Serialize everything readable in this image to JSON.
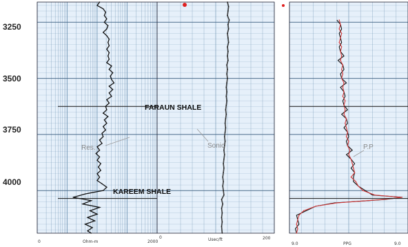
{
  "chart_data": {
    "type": "line",
    "depth_axis": {
      "tick_labels": [
        "3250",
        "3500",
        "3750",
        "4000"
      ],
      "ticks": [
        3250,
        3500,
        3750,
        4000
      ],
      "range": [
        3160,
        4190
      ]
    },
    "tracks": [
      {
        "id": "resistivity",
        "curve_label": "Res.",
        "scale_labels": [
          "0",
          "Ohm-m",
          "2000"
        ],
        "log_scale": true,
        "grid": true
      },
      {
        "id": "sonic",
        "curve_label": "Sonic",
        "scale_labels": [
          "0",
          "Usec/ft",
          "200"
        ],
        "grid": true
      },
      {
        "id": "pore_pressure",
        "curve_label": "P.P",
        "scale_labels": [
          "9.0",
          "PPG",
          "9.0"
        ],
        "grid": true
      }
    ],
    "annotations": [
      "FARAUN SHALE",
      "KAREEM SHALE"
    ],
    "formation_depths": [
      3625,
      4035
    ],
    "series": [
      {
        "track": "resistivity",
        "x_range": [
          0,
          100
        ],
        "points": [
          [
            3160,
            52
          ],
          [
            3175,
            50
          ],
          [
            3190,
            55
          ],
          [
            3205,
            57
          ],
          [
            3220,
            56
          ],
          [
            3235,
            58
          ],
          [
            3250,
            56
          ],
          [
            3265,
            59
          ],
          [
            3280,
            58
          ],
          [
            3295,
            55
          ],
          [
            3310,
            58
          ],
          [
            3325,
            60
          ],
          [
            3340,
            59
          ],
          [
            3355,
            60
          ],
          [
            3370,
            58
          ],
          [
            3385,
            60
          ],
          [
            3400,
            59
          ],
          [
            3415,
            60
          ],
          [
            3430,
            58
          ],
          [
            3445,
            62
          ],
          [
            3460,
            60
          ],
          [
            3475,
            63
          ],
          [
            3490,
            61
          ],
          [
            3505,
            62
          ],
          [
            3520,
            64
          ],
          [
            3535,
            60
          ],
          [
            3550,
            63
          ],
          [
            3565,
            60
          ],
          [
            3580,
            62
          ],
          [
            3595,
            58
          ],
          [
            3610,
            60
          ],
          [
            3625,
            57
          ],
          [
            3640,
            58
          ],
          [
            3655,
            55
          ],
          [
            3670,
            59
          ],
          [
            3685,
            56
          ],
          [
            3700,
            58
          ],
          [
            3715,
            55
          ],
          [
            3730,
            57
          ],
          [
            3745,
            54
          ],
          [
            3760,
            55
          ],
          [
            3775,
            52
          ],
          [
            3790,
            54
          ],
          [
            3805,
            50
          ],
          [
            3820,
            52
          ],
          [
            3835,
            49
          ],
          [
            3850,
            52
          ],
          [
            3865,
            50
          ],
          [
            3880,
            53
          ],
          [
            3895,
            51
          ],
          [
            3910,
            53
          ],
          [
            3925,
            50
          ],
          [
            3940,
            52
          ],
          [
            3955,
            50
          ],
          [
            3970,
            54
          ],
          [
            3985,
            58
          ],
          [
            4000,
            55
          ],
          [
            4015,
            40
          ],
          [
            4030,
            30
          ],
          [
            4045,
            45
          ],
          [
            4060,
            38
          ],
          [
            4075,
            52
          ],
          [
            4090,
            44
          ],
          [
            4105,
            50
          ],
          [
            4120,
            42
          ],
          [
            4135,
            48
          ],
          [
            4150,
            40
          ],
          [
            4165,
            46
          ],
          [
            4180,
            42
          ],
          [
            4190,
            45
          ]
        ]
      },
      {
        "track": "sonic",
        "x_range": [
          0,
          200
        ],
        "points": [
          [
            3160,
            120
          ],
          [
            3180,
            122
          ],
          [
            3200,
            121
          ],
          [
            3220,
            120
          ],
          [
            3240,
            123
          ],
          [
            3260,
            121
          ],
          [
            3280,
            122
          ],
          [
            3300,
            120
          ],
          [
            3320,
            121
          ],
          [
            3340,
            122
          ],
          [
            3360,
            120
          ],
          [
            3380,
            121
          ],
          [
            3400,
            120
          ],
          [
            3420,
            121
          ],
          [
            3440,
            119
          ],
          [
            3460,
            120
          ],
          [
            3480,
            119
          ],
          [
            3500,
            120
          ],
          [
            3520,
            119
          ],
          [
            3540,
            118
          ],
          [
            3560,
            119
          ],
          [
            3580,
            118
          ],
          [
            3600,
            119
          ],
          [
            3620,
            118
          ],
          [
            3640,
            117
          ],
          [
            3660,
            118
          ],
          [
            3680,
            117
          ],
          [
            3700,
            116
          ],
          [
            3720,
            117
          ],
          [
            3740,
            116
          ],
          [
            3760,
            115
          ],
          [
            3780,
            116
          ],
          [
            3800,
            115
          ],
          [
            3820,
            114
          ],
          [
            3840,
            115
          ],
          [
            3860,
            114
          ],
          [
            3880,
            113
          ],
          [
            3900,
            114
          ],
          [
            3920,
            113
          ],
          [
            3940,
            112
          ],
          [
            3960,
            113
          ],
          [
            3980,
            112
          ],
          [
            4000,
            113
          ],
          [
            4020,
            114
          ],
          [
            4040,
            110
          ],
          [
            4060,
            112
          ],
          [
            4080,
            110
          ],
          [
            4100,
            111
          ],
          [
            4120,
            110
          ],
          [
            4140,
            111
          ],
          [
            4160,
            110
          ],
          [
            4190,
            111
          ]
        ]
      },
      {
        "track": "pore_pressure",
        "x_range": [
          0,
          100
        ],
        "points": [
          [
            3240,
            42
          ],
          [
            3260,
            43
          ],
          [
            3280,
            42
          ],
          [
            3300,
            44
          ],
          [
            3320,
            43
          ],
          [
            3340,
            42
          ],
          [
            3360,
            44
          ],
          [
            3380,
            43
          ],
          [
            3400,
            44
          ],
          [
            3420,
            43
          ],
          [
            3440,
            45
          ],
          [
            3460,
            44
          ],
          [
            3480,
            45
          ],
          [
            3500,
            44
          ],
          [
            3520,
            46
          ],
          [
            3540,
            45
          ],
          [
            3560,
            46
          ],
          [
            3580,
            45
          ],
          [
            3600,
            47
          ],
          [
            3620,
            46
          ],
          [
            3640,
            47
          ],
          [
            3660,
            46
          ],
          [
            3680,
            48
          ],
          [
            3700,
            47
          ],
          [
            3720,
            48
          ],
          [
            3740,
            49
          ],
          [
            3760,
            48
          ],
          [
            3780,
            50
          ],
          [
            3800,
            49
          ],
          [
            3820,
            51
          ],
          [
            3840,
            50
          ],
          [
            3860,
            52
          ],
          [
            3880,
            53
          ],
          [
            3900,
            54
          ],
          [
            3920,
            55
          ],
          [
            3940,
            52
          ],
          [
            3960,
            56
          ],
          [
            3980,
            58
          ],
          [
            4000,
            62
          ],
          [
            4020,
            72
          ],
          [
            4030,
            95
          ],
          [
            4040,
            78
          ],
          [
            4055,
            40
          ],
          [
            4070,
            22
          ],
          [
            4090,
            12
          ],
          [
            4110,
            8
          ],
          [
            4130,
            7
          ],
          [
            4150,
            6
          ],
          [
            4170,
            7
          ],
          [
            4190,
            6
          ]
        ]
      }
    ],
    "colors": {
      "track_background": "#e6f0fa",
      "grid_line": "#6a8fb0",
      "curve": "#101010",
      "pore_pressure_curve": "#d43a3a",
      "sonic_curve": "#3a3a3a",
      "top_marker": "#e02020"
    }
  }
}
